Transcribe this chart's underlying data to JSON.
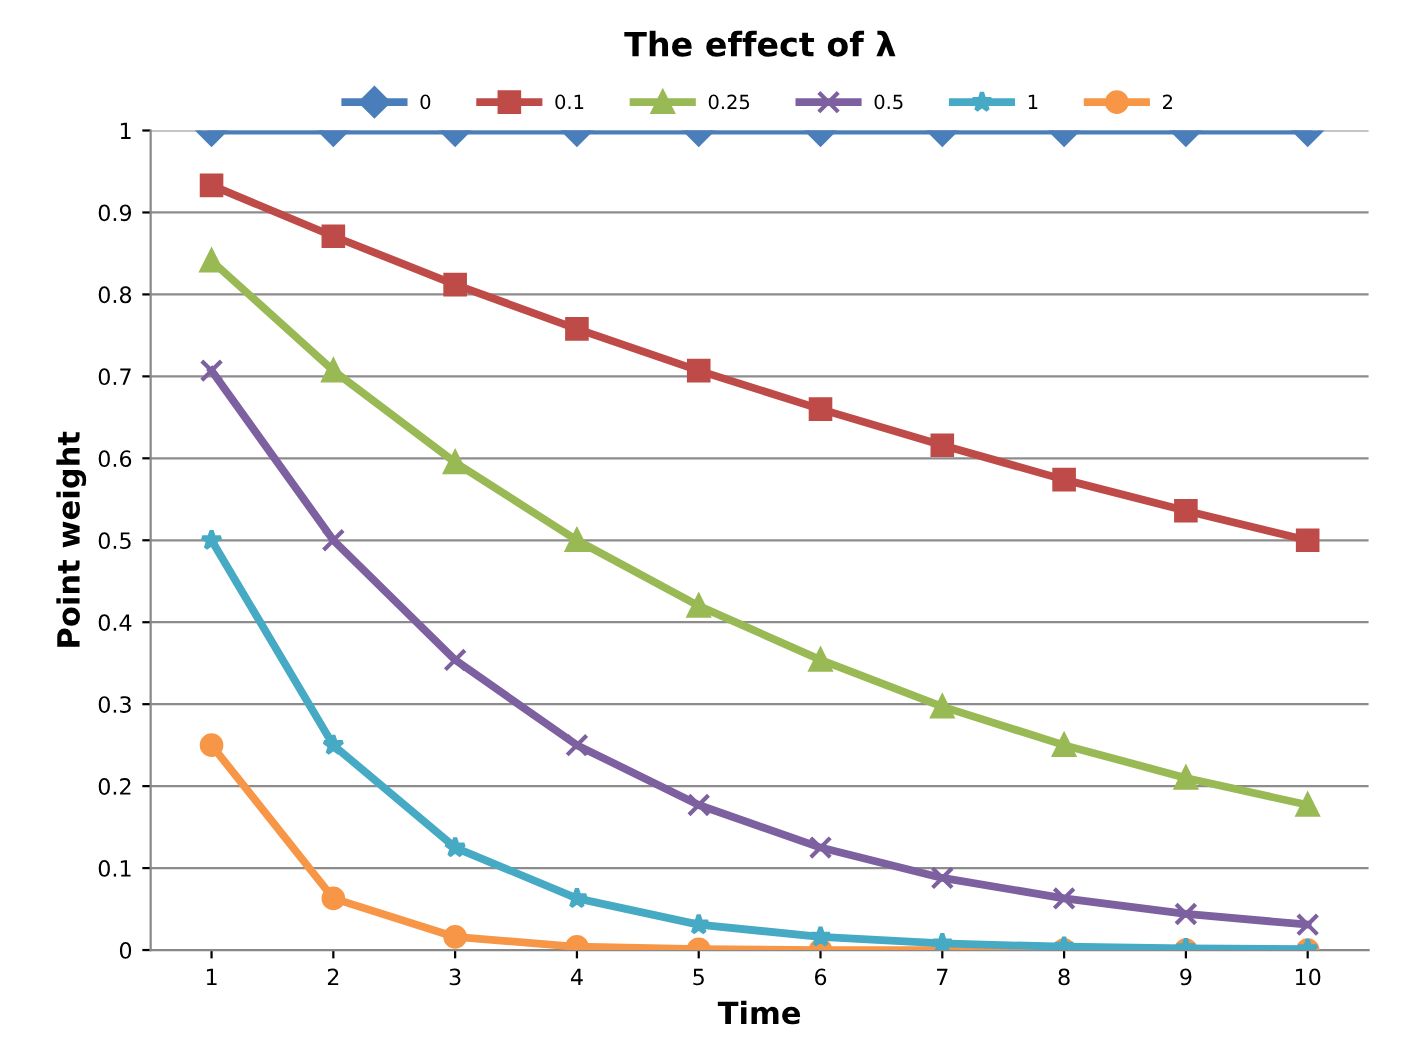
{
  "chart_data": {
    "type": "line",
    "title": "The effect of λ",
    "xlabel": "Time",
    "ylabel": "Point weight",
    "categories": [
      "1",
      "2",
      "3",
      "4",
      "5",
      "6",
      "7",
      "8",
      "9",
      "10"
    ],
    "series": [
      {
        "name": "0",
        "color": "#4a7ebb",
        "marker": "diamond",
        "values": [
          1,
          1,
          1,
          1,
          1,
          1,
          1,
          1,
          1,
          1
        ]
      },
      {
        "name": "0.1",
        "color": "#be4b48",
        "marker": "square",
        "values": [
          0.933,
          0.871,
          0.812,
          0.758,
          0.707,
          0.66,
          0.616,
          0.574,
          0.536,
          0.5
        ]
      },
      {
        "name": "0.25",
        "color": "#98b954",
        "marker": "triangle",
        "values": [
          0.841,
          0.707,
          0.595,
          0.5,
          0.42,
          0.354,
          0.297,
          0.25,
          0.21,
          0.177
        ]
      },
      {
        "name": "0.5",
        "color": "#7d60a0",
        "marker": "cross",
        "values": [
          0.707,
          0.5,
          0.354,
          0.25,
          0.177,
          0.125,
          0.088,
          0.063,
          0.044,
          0.031
        ]
      },
      {
        "name": "1",
        "color": "#46aac5",
        "marker": "star",
        "values": [
          0.5,
          0.25,
          0.125,
          0.063,
          0.031,
          0.016,
          0.008,
          0.004,
          0.002,
          0.001
        ]
      },
      {
        "name": "2",
        "color": "#f79646",
        "marker": "circle",
        "values": [
          0.25,
          0.063,
          0.016,
          0.004,
          0.001,
          0,
          0,
          0,
          0,
          0
        ]
      }
    ],
    "ylim": [
      0,
      1
    ],
    "yticks": [
      0,
      0.1,
      0.2,
      0.3,
      0.4,
      0.5,
      0.6,
      0.7,
      0.8,
      0.9,
      1
    ],
    "grid": "y",
    "legend": "top",
    "line_style": "solid"
  }
}
